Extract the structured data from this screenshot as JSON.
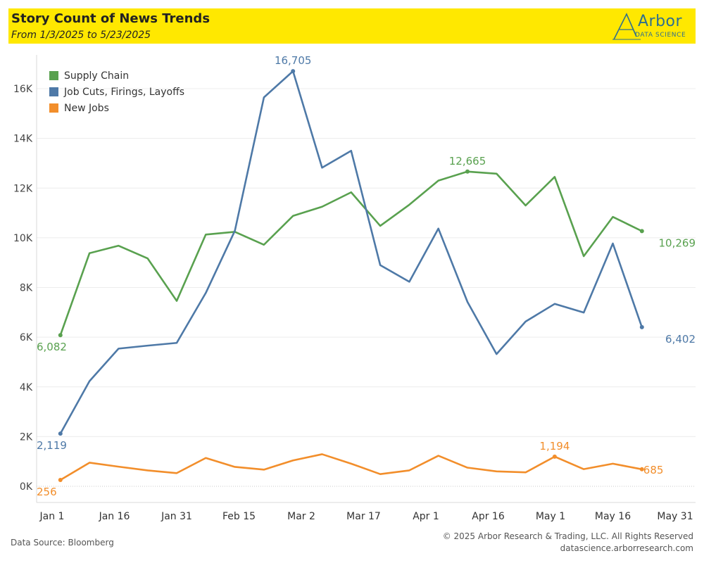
{
  "header": {
    "title": "Story Count of News Trends",
    "subtitle": "From 1/3/2025 to 5/23/2025",
    "logo_word": "Arbor",
    "logo_sub": "DATA SCIENCE",
    "background_color": "#ffe800"
  },
  "footer": {
    "source": "Data Source: Bloomberg",
    "copyright": "© 2025 Arbor Research & Trading, LLC. All Rights Reserved",
    "website": "datascience.arborresearch.com"
  },
  "chart_data": {
    "type": "line",
    "title": "Story Count of News Trends",
    "subtitle": "From 1/3/2025 to 5/23/2025",
    "xlabel": "",
    "ylabel": "",
    "x": [
      "2025-01-03",
      "2025-01-10",
      "2025-01-17",
      "2025-01-24",
      "2025-01-31",
      "2025-02-07",
      "2025-02-14",
      "2025-02-21",
      "2025-02-28",
      "2025-03-07",
      "2025-03-14",
      "2025-03-21",
      "2025-03-28",
      "2025-04-04",
      "2025-04-11",
      "2025-04-18",
      "2025-04-25",
      "2025-05-02",
      "2025-05-09",
      "2025-05-16",
      "2025-05-23"
    ],
    "x_ticks": [
      {
        "label": "Jan 1",
        "date": "2025-01-01"
      },
      {
        "label": "Jan 16",
        "date": "2025-01-16"
      },
      {
        "label": "Jan 31",
        "date": "2025-01-31"
      },
      {
        "label": "Feb 15",
        "date": "2025-02-15"
      },
      {
        "label": "Mar 2",
        "date": "2025-03-02"
      },
      {
        "label": "Mar 17",
        "date": "2025-03-17"
      },
      {
        "label": "Apr 1",
        "date": "2025-04-01"
      },
      {
        "label": "Apr 16",
        "date": "2025-04-16"
      },
      {
        "label": "May 1",
        "date": "2025-05-01"
      },
      {
        "label": "May 16",
        "date": "2025-05-16"
      },
      {
        "label": "May 31",
        "date": "2025-05-31"
      }
    ],
    "x_range": [
      "2025-01-01",
      "2025-05-31"
    ],
    "ylim": [
      0,
      17500
    ],
    "y_ticks": [
      {
        "label": "0K",
        "value": 0
      },
      {
        "label": "2K",
        "value": 2000
      },
      {
        "label": "4K",
        "value": 4000
      },
      {
        "label": "6K",
        "value": 6000
      },
      {
        "label": "8K",
        "value": 8000
      },
      {
        "label": "10K",
        "value": 10000
      },
      {
        "label": "12K",
        "value": 12000
      },
      {
        "label": "14K",
        "value": 14000
      },
      {
        "label": "16K",
        "value": 16000
      }
    ],
    "grid": true,
    "legend_position": "top-left",
    "series": [
      {
        "name": "Supply Chain",
        "color": "#59a14f",
        "values": [
          6082,
          9380,
          9680,
          9170,
          7460,
          10130,
          10240,
          9720,
          10880,
          11250,
          11830,
          10480,
          11330,
          12300,
          12665,
          12580,
          11300,
          12450,
          9260,
          10840,
          10269
        ],
        "labels": [
          {
            "index": 0,
            "text": "6,082",
            "position": "below"
          },
          {
            "index": 14,
            "text": "12,665",
            "position": "above"
          },
          {
            "index": 20,
            "text": "10,269",
            "position": "below"
          }
        ]
      },
      {
        "name": "Job Cuts, Firings, Layoffs",
        "color": "#4e79a7",
        "values": [
          2119,
          4230,
          5540,
          5660,
          5770,
          7780,
          10280,
          15650,
          16705,
          12820,
          13500,
          8900,
          8230,
          10370,
          7420,
          5320,
          6630,
          7340,
          6990,
          9770,
          6402
        ],
        "labels": [
          {
            "index": 0,
            "text": "2,119",
            "position": "below"
          },
          {
            "index": 8,
            "text": "16,705",
            "position": "above"
          },
          {
            "index": 20,
            "text": "6,402",
            "position": "below"
          }
        ]
      },
      {
        "name": "New Jobs",
        "color": "#f28e2b",
        "values": [
          256,
          950,
          790,
          640,
          530,
          1140,
          780,
          670,
          1040,
          1290,
          910,
          490,
          640,
          1230,
          750,
          600,
          560,
          1194,
          690,
          910,
          685
        ],
        "labels": [
          {
            "index": 0,
            "text": "256",
            "position": "below"
          },
          {
            "index": 17,
            "text": "1,194",
            "position": "above"
          },
          {
            "index": 20,
            "text": "685",
            "position": "right"
          }
        ]
      }
    ]
  }
}
